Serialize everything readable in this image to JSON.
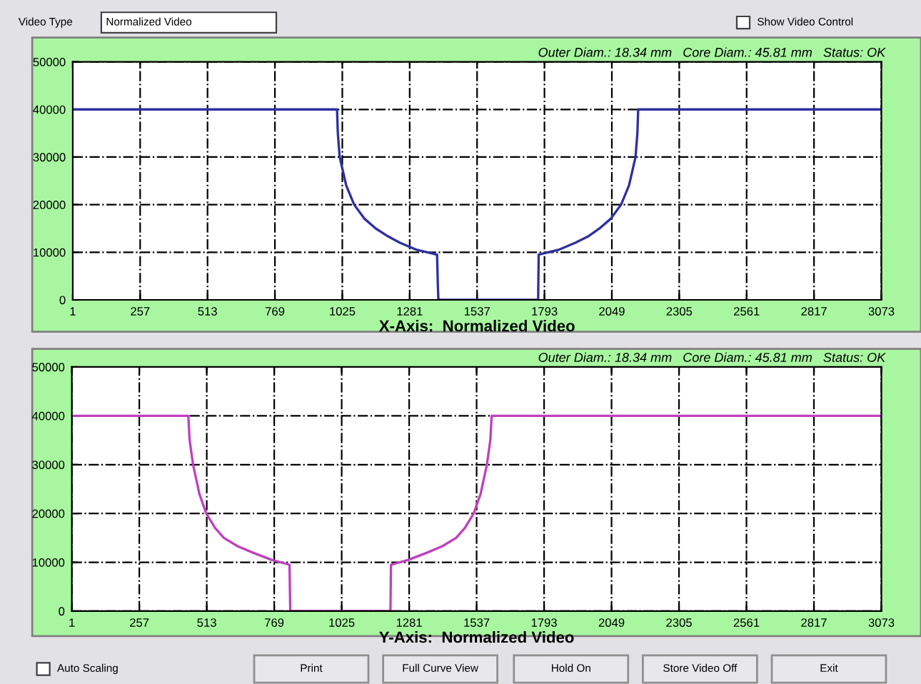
{
  "chart_data": [
    {
      "type": "line",
      "subtitle": "Outer Diam.: 18.34 mm   Core Diam.: 45.81 mm   Status: OK",
      "xlabel": "X-Axis:  Normalized Video",
      "annotations": [
        "Video Type",
        "Normalized Video",
        "Show Video Control"
      ],
      "series": [
        {
          "color": "#3030a0",
          "x": [
            1,
            1005,
            1008,
            1015,
            1040,
            1070,
            1110,
            1152,
            1200,
            1244,
            1308,
            1385,
            1388,
            1390,
            1769,
            1771,
            1846,
            1910,
            1958,
            2002,
            2044,
            2084,
            2114,
            2139,
            2146,
            2149,
            3073
          ],
          "values": [
            40000,
            40000,
            35000,
            30000,
            24000,
            20000,
            17000,
            15000,
            13300,
            12000,
            10500,
            9500,
            3000,
            0,
            0,
            9500,
            10500,
            12000,
            13300,
            15000,
            17000,
            20000,
            24000,
            30000,
            35000,
            40000,
            40000
          ]
        }
      ],
      "xlim": [
        1,
        3073
      ],
      "ylim": [
        0,
        50000
      ],
      "xticks": [
        1,
        257,
        513,
        769,
        1025,
        1281,
        1537,
        1793,
        2049,
        2305,
        2561,
        2817,
        3073
      ],
      "yticks": [
        0,
        10000,
        20000,
        30000,
        40000,
        50000
      ],
      "grid": true,
      "marker": "none",
      "line_style": "solid"
    },
    {
      "type": "line",
      "subtitle": "Outer Diam.: 18.34 mm   Core Diam.: 45.81 mm   Status: OK",
      "xlabel": "Y-Axis:  Normalized Video",
      "annotations": [
        "Auto Scaling",
        "Print",
        "Full Curve View",
        "Hold On",
        "Store Video Off",
        "Exit"
      ],
      "series": [
        {
          "color": "#c040c0",
          "x": [
            1,
            443,
            448,
            461,
            485,
            511,
            545,
            578,
            630,
            687,
            759,
            827,
            829,
            830,
            1210,
            1212,
            1278,
            1350,
            1407,
            1459,
            1492,
            1526,
            1552,
            1576,
            1589,
            1594,
            3073
          ],
          "values": [
            40000,
            40000,
            35000,
            30000,
            24000,
            20000,
            17000,
            15000,
            13300,
            12000,
            10500,
            9500,
            3000,
            0,
            0,
            9500,
            10500,
            12000,
            13300,
            15000,
            17000,
            20000,
            24000,
            30000,
            35000,
            40000,
            40000
          ]
        }
      ],
      "xlim": [
        1,
        3073
      ],
      "ylim": [
        0,
        50000
      ],
      "xticks": [
        1,
        257,
        513,
        769,
        1025,
        1281,
        1537,
        1793,
        2049,
        2305,
        2561,
        2817,
        3073
      ],
      "yticks": [
        0,
        10000,
        20000,
        30000,
        40000,
        50000
      ],
      "grid": true,
      "marker": "none",
      "line_style": "solid"
    }
  ]
}
